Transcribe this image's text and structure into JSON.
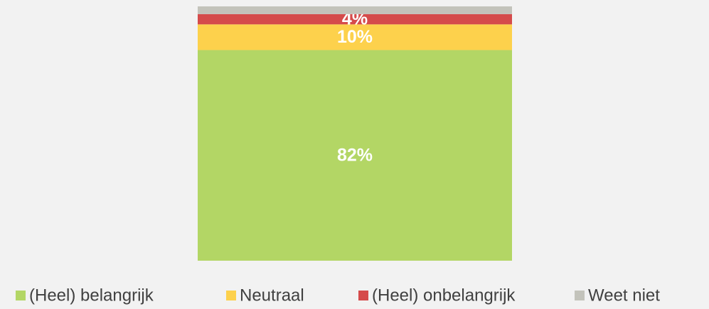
{
  "chart_data": {
    "type": "stacked-bar-100",
    "series": [
      {
        "name": "(Heel) belangrijk",
        "color": "#b3d665",
        "values": [
          82
        ],
        "value_labels": [
          "82%"
        ]
      },
      {
        "name": "Neutraal",
        "color": "#fdd14c",
        "values": [
          10
        ],
        "value_labels": [
          "10%"
        ]
      },
      {
        "name": "(Heel) onbelangrijk",
        "color": "#d54b4b",
        "values": [
          4
        ],
        "value_labels": [
          "4%"
        ]
      },
      {
        "name": "Weet niet",
        "color": "#c3c3bb",
        "values": [
          3
        ],
        "value_labels": [
          null
        ]
      }
    ],
    "legend": "bottom"
  }
}
